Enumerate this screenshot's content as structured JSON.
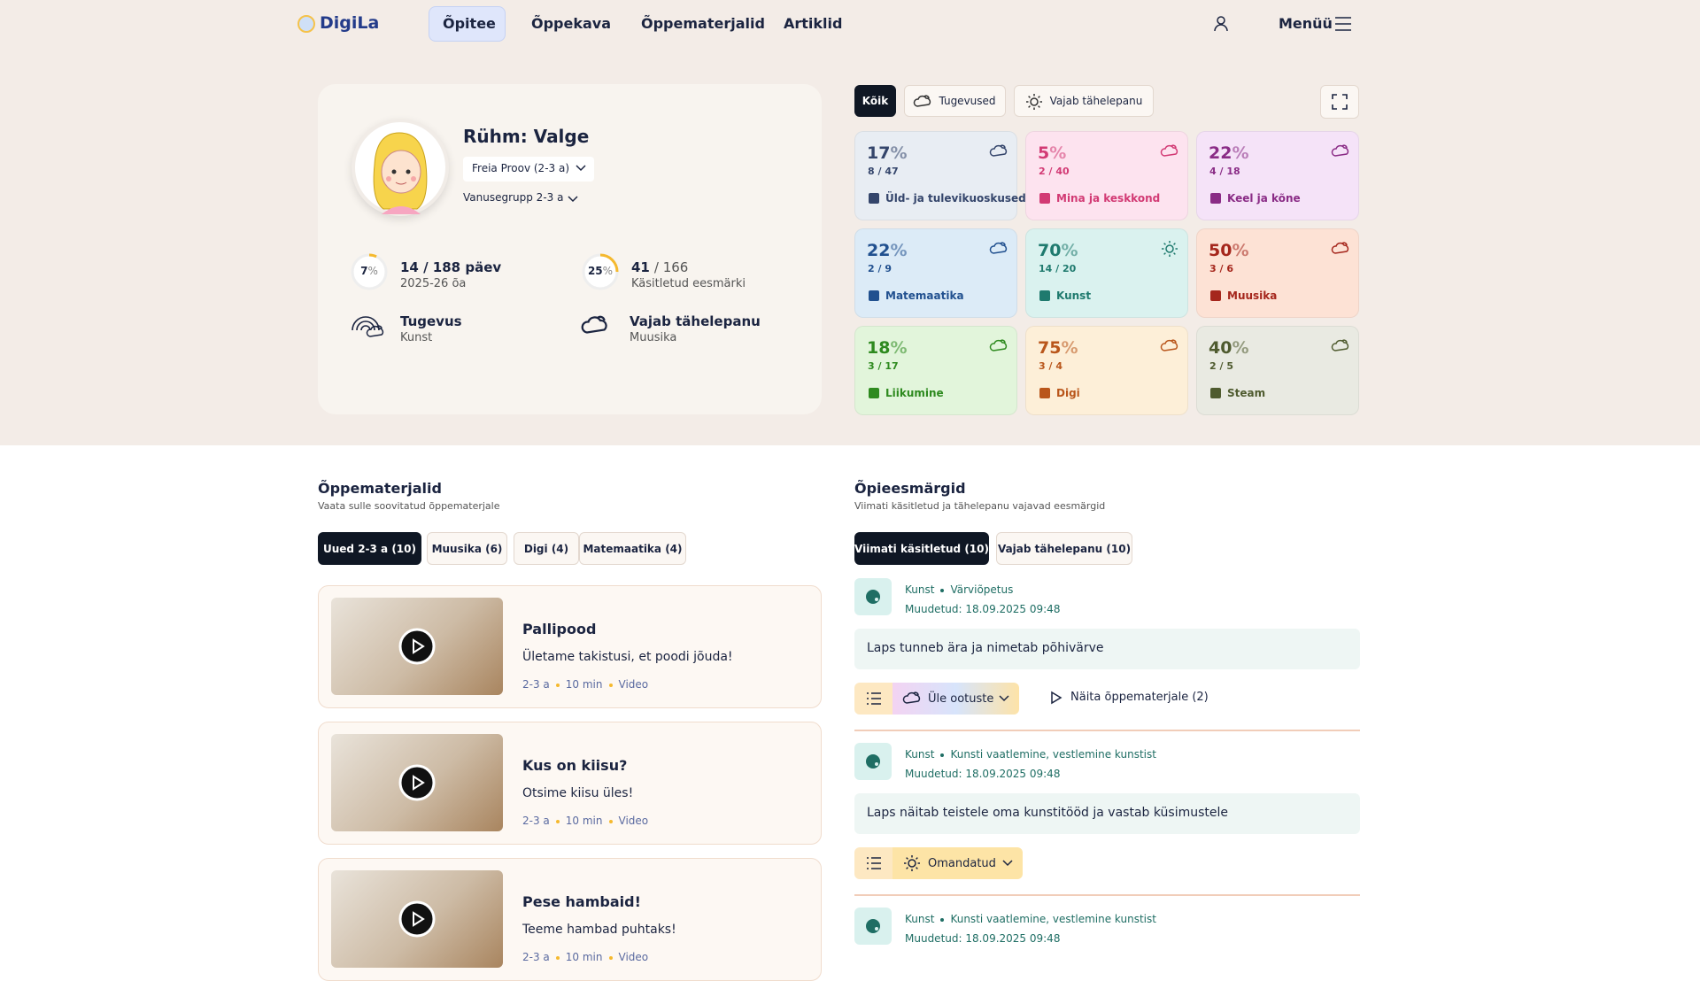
{
  "nav": {
    "logo": "DigiLa",
    "links": [
      "Õpitee",
      "Õppekava",
      "Õppematerjalid",
      "Artiklid"
    ],
    "menu": "Menüü"
  },
  "profile": {
    "group": "Rühm: Valge",
    "child": "Freia Proov (2-3 a)",
    "age_group": "Vanusegrupp 2-3 a",
    "unit": "%",
    "stats": [
      {
        "percent": 7,
        "main": "14 / 188 päev",
        "sub": "2025-26 õa"
      },
      {
        "percent": 25,
        "main": "41",
        "total": "/ 166",
        "sub": "Käsitletud eesmärki"
      }
    ],
    "strength": {
      "title": "Tugevus",
      "sub": "Kunst"
    },
    "attention": {
      "title": "Vajab tähelepanu",
      "sub": "Muusika"
    }
  },
  "filters": [
    "Kõik",
    "Tugevused",
    "Vajab tähelepanu"
  ],
  "areas": [
    {
      "percent": 17,
      "count": "8 / 47",
      "name": "Üld- ja tulevikuoskused",
      "bg": "#e8edf3",
      "color": "#34456b",
      "icon": "cloud"
    },
    {
      "percent": 5,
      "count": "2 / 40",
      "name": "Mina ja keskkond",
      "bg": "#fde3ef",
      "color": "#d23a74",
      "icon": "cloud"
    },
    {
      "percent": 22,
      "count": "4 / 18",
      "name": "Keel ja kõne",
      "bg": "#f5e3f8",
      "color": "#8a2c86",
      "icon": "cloud"
    },
    {
      "percent": 22,
      "count": "2 / 9",
      "name": "Matemaatika",
      "bg": "#dcebf7",
      "color": "#21508f",
      "icon": "cloud"
    },
    {
      "percent": 70,
      "count": "14 / 20",
      "name": "Kunst",
      "bg": "#daf2ef",
      "color": "#1f7a6e",
      "icon": "sun"
    },
    {
      "percent": 50,
      "count": "3 / 6",
      "name": "Muusika",
      "bg": "#fde2d5",
      "color": "#a5261c",
      "icon": "cloud"
    },
    {
      "percent": 18,
      "count": "3 / 17",
      "name": "Liikumine",
      "bg": "#e2f5db",
      "color": "#2e8a1f",
      "icon": "cloud"
    },
    {
      "percent": 75,
      "count": "3 / 4",
      "name": "Digi",
      "bg": "#fdefd8",
      "color": "#b9561b",
      "icon": "cloud"
    },
    {
      "percent": 40,
      "count": "2 / 5",
      "name": "Steam",
      "bg": "#e9eae2",
      "color": "#4f5b2f",
      "icon": "cloud"
    }
  ],
  "materials": {
    "title": "Õppematerjalid",
    "subtitle": "Vaata sulle soovitatud õppematerjale",
    "tabs": [
      "Uued 2-3 a (10)",
      "Muusika (6)",
      "Digi (4)",
      "Matemaatika (4)"
    ],
    "items": [
      {
        "title": "Pallipood",
        "desc": "Ületame takistusi, et poodi jõuda!",
        "meta": [
          "2-3 a",
          "10 min",
          "Video"
        ]
      },
      {
        "title": "Kus on kiisu?",
        "desc": "Otsime kiisu üles!",
        "meta": [
          "2-3 a",
          "10 min",
          "Video"
        ]
      },
      {
        "title": "Pese hambaid!",
        "desc": "Teeme hambad puhtaks!",
        "meta": [
          "2-3 a",
          "10 min",
          "Video"
        ]
      }
    ]
  },
  "goals": {
    "title": "Õpieesmärgid",
    "subtitle": "Viimati käsitletud ja tähelepanu vajavad eesmärgid",
    "tabs": [
      "Viimati käsitletud (10)",
      "Vajab tähelepanu (10)"
    ],
    "items": [
      {
        "area": "Kunst",
        "topic": "Värviõpetus",
        "modified": "Muudetud: 18.09.2025 09:48",
        "text": "Laps tunneb ära ja nimetab põhivärve",
        "status": "Üle ootuste",
        "link": "Näita õppematerjale (2)"
      },
      {
        "area": "Kunst",
        "topic": "Kunsti vaatlemine, vestlemine kunstist",
        "modified": "Muudetud: 18.09.2025 09:48",
        "text": "Laps näitab teistele oma kunstitööd ja vastab küsimustele",
        "status": "Omandatud"
      },
      {
        "area": "Kunst",
        "topic": "Kunsti vaatlemine, vestlemine kunstist",
        "modified": "Muudetud: 18.09.2025 09:48"
      }
    ]
  }
}
